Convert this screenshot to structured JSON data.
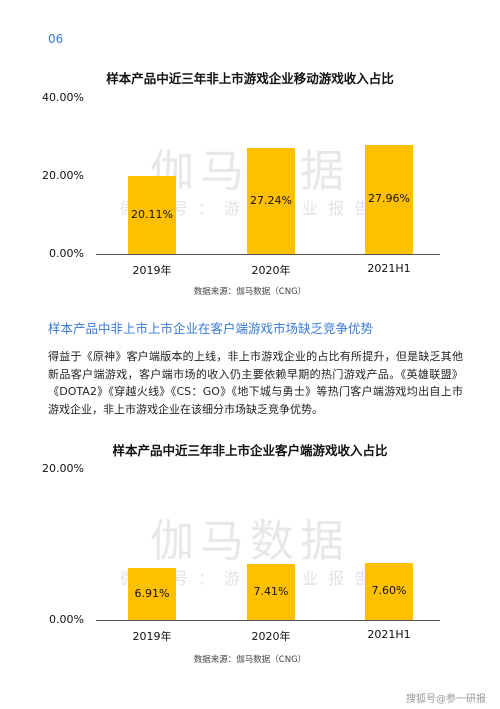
{
  "page_number": "06",
  "watermark": {
    "main": "伽马数据",
    "sub": "微信号：游戏产业报告"
  },
  "chart_data": [
    {
      "type": "bar",
      "title": "样本产品中近三年非上市游戏企业移动游戏收入占比",
      "categories": [
        "2019年",
        "2020年",
        "2021H1"
      ],
      "values": [
        20.11,
        27.24,
        27.96
      ],
      "value_labels": [
        "20.11%",
        "27.24%",
        "27.96%"
      ],
      "y_ticks": [
        "40.00%",
        "20.00%",
        "0.00%"
      ],
      "ylim": [
        0,
        40
      ],
      "color": "#ffc000",
      "source": "数据来源：伽马数据（CNG）"
    },
    {
      "type": "bar",
      "title": "样本产品中近三年非上市企业客户端游戏收入占比",
      "categories": [
        "2019年",
        "2020年",
        "2021H1"
      ],
      "values": [
        6.91,
        7.41,
        7.6
      ],
      "value_labels": [
        "6.91%",
        "7.41%",
        "7.60%"
      ],
      "y_ticks": [
        "20.00%",
        "0.00%"
      ],
      "ylim": [
        0,
        20
      ],
      "color": "#ffc000",
      "source": "数据来源：伽马数据（CNG）"
    }
  ],
  "section": {
    "heading": "样本产品中非上市上市企业在客户端游戏市场缺乏竞争优势",
    "body": "得益于《原神》客户端版本的上线，非上市游戏企业的占比有所提升，但是缺乏其他新品客户端游戏，客户端市场的收入仍主要依赖早期的热门游戏产品。《英雄联盟》《DOTA2》《穿越火线》《CS：GO》《地下城与勇士》等热门客户端游戏均出自上市游戏企业，非上市游戏企业在该细分市场缺乏竞争优势。"
  },
  "credit": "搜狐号@参一研报"
}
